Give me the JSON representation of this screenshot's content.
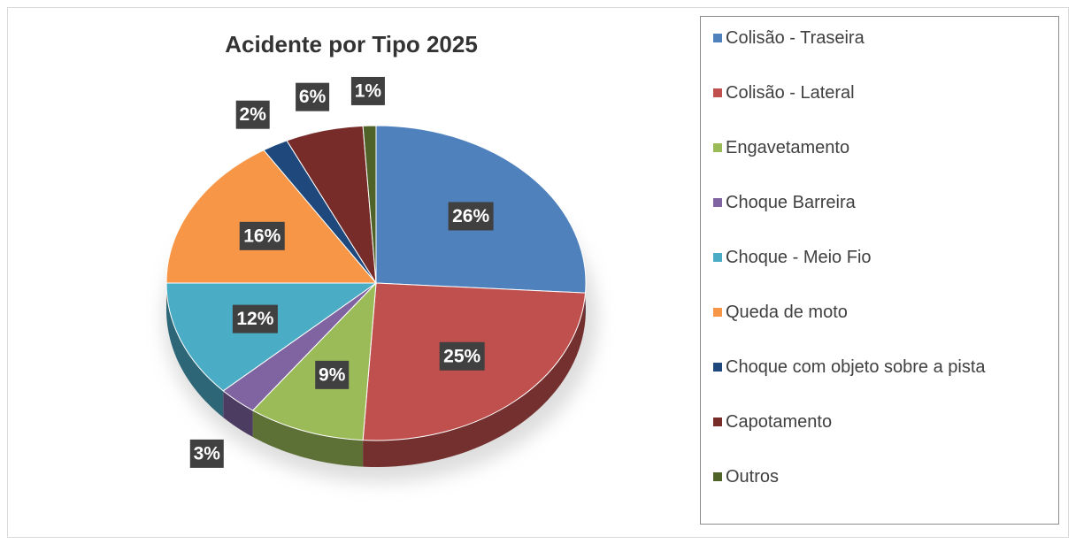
{
  "chart_data": {
    "type": "pie",
    "title": "Acidente por Tipo 2025",
    "categories": [
      "Colisão - Traseira",
      "Colisão - Lateral",
      "Engavetamento",
      "Choque Barreira",
      "Choque - Meio Fio",
      "Queda de moto",
      "Choque com objeto sobre a pista",
      "Capotamento",
      "Outros"
    ],
    "values": [
      26,
      25,
      9,
      3,
      12,
      16,
      2,
      6,
      1
    ],
    "value_labels": [
      "26%",
      "25%",
      "9%",
      "3%",
      "12%",
      "16%",
      "2%",
      "6%",
      "1%"
    ],
    "colors": [
      "#4f81bd",
      "#c0504d",
      "#9bbb59",
      "#8064a2",
      "#4bacc6",
      "#f79646",
      "#1f497d",
      "#772c2a",
      "#4f6228"
    ],
    "legend": "right"
  }
}
